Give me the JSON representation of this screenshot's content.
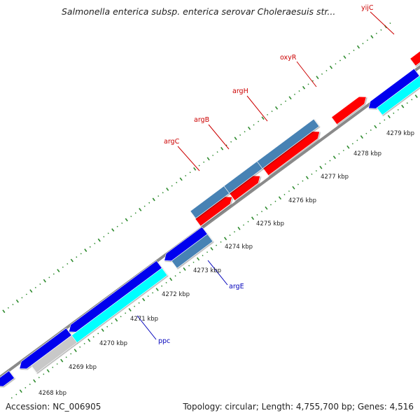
{
  "title": "Salmonella enterica subsp. enterica serovar Choleraesuis str...",
  "footer": {
    "accession": "Accession: NC_006905",
    "stats": "Topology: circular; Length: 4,755,700 bp; Genes: 4,516"
  },
  "colors": {
    "forward_cds": "#ff0000",
    "reverse_cds": "#0000ee",
    "forward_label": "#cc0000",
    "reverse_label": "#0000bb",
    "operon": "#4682b4",
    "rna": "#00ffff",
    "other": "#c8c8c8",
    "backbone": "#888888",
    "tick": "#2e8b2e"
  },
  "scale_labels": [
    "4268 kbp",
    "4269 kbp",
    "4270 kbp",
    "4271 kbp",
    "4272 kbp",
    "4273 kbp",
    "4274 kbp",
    "4275 kbp",
    "4276 kbp",
    "4277 kbp",
    "4278 kbp",
    "4279 kbp"
  ],
  "gene_labels": [
    {
      "name": "yijC",
      "strand": "forward"
    },
    {
      "name": "oxyR",
      "strand": "forward"
    },
    {
      "name": "argH",
      "strand": "forward"
    },
    {
      "name": "argB",
      "strand": "forward"
    },
    {
      "name": "argC",
      "strand": "forward"
    },
    {
      "name": "argE",
      "strand": "reverse"
    },
    {
      "name": "ppc",
      "strand": "reverse"
    }
  ]
}
